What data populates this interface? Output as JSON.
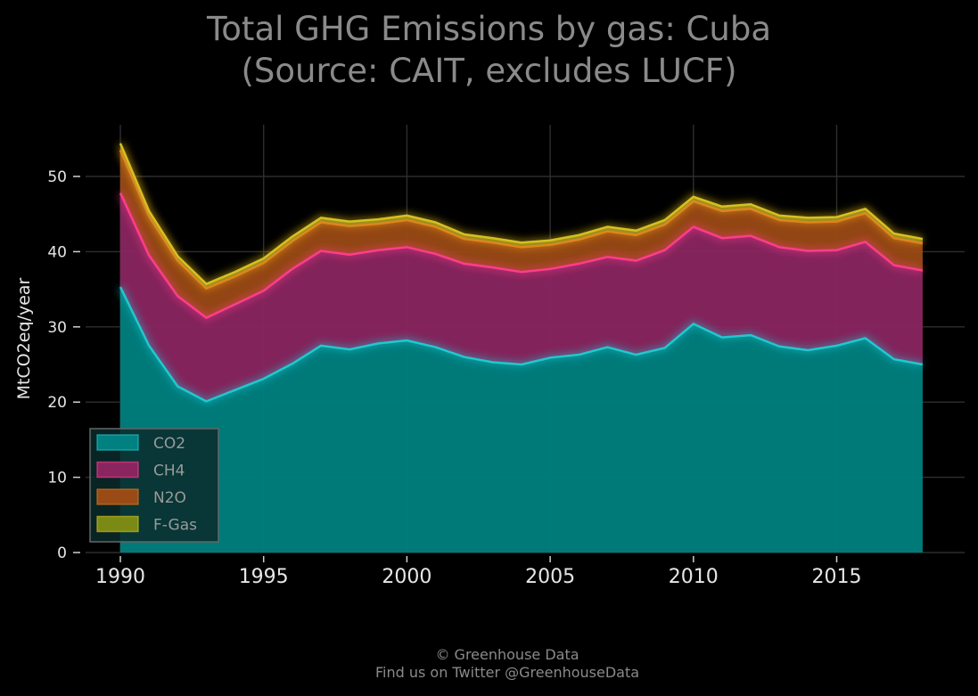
{
  "title_line1": "Total GHG Emissions by gas: Cuba",
  "title_line2": "(Source: CAIT, excludes LUCF)",
  "footer_line1": "© Greenhouse Data",
  "footer_line2": "Find us on Twitter @GreenhouseData",
  "colors": {
    "background": "#000000",
    "CO2": "#008080",
    "CH4": "#8a2560",
    "N2O": "#9a4a14",
    "F-Gas": "#7a8a14",
    "CO2_line": "#1fc8d0",
    "CH4_line": "#ff3d8c",
    "N2O_line": "#e07a20",
    "F-Gas_line": "#d6c020"
  },
  "chart_data": {
    "type": "area",
    "stacked": true,
    "title": "Total GHG Emissions by gas: Cuba (Source: CAIT, excludes LUCF)",
    "xlabel": "",
    "ylabel": "MtCO2eq/year",
    "xlim": [
      1990,
      2018
    ],
    "ylim": [
      0,
      55
    ],
    "x_ticks": [
      1990,
      1995,
      2000,
      2005,
      2010,
      2015
    ],
    "y_ticks": [
      0,
      10,
      20,
      30,
      40,
      50
    ],
    "grid": true,
    "legend_position": "bottom-left",
    "x": [
      1990,
      1991,
      1992,
      1993,
      1994,
      1995,
      1996,
      1997,
      1998,
      1999,
      2000,
      2001,
      2002,
      2003,
      2004,
      2005,
      2006,
      2007,
      2008,
      2009,
      2010,
      2011,
      2012,
      2013,
      2014,
      2015,
      2016,
      2017,
      2018
    ],
    "series": [
      {
        "name": "CO2",
        "values": [
          35.3,
          27.5,
          22.1,
          20.1,
          21.6,
          23.1,
          25.1,
          27.5,
          27.0,
          27.8,
          28.2,
          27.3,
          26.0,
          25.3,
          25.0,
          25.9,
          26.3,
          27.3,
          26.3,
          27.2,
          30.4,
          28.6,
          28.9,
          27.4,
          26.9,
          27.5,
          28.5,
          25.7,
          25.0
        ]
      },
      {
        "name": "CH4",
        "values": [
          12.5,
          12.0,
          12.0,
          11.1,
          11.4,
          11.7,
          12.6,
          12.6,
          12.6,
          12.4,
          12.4,
          12.4,
          12.4,
          12.6,
          12.3,
          11.8,
          12.1,
          12.0,
          12.5,
          13.0,
          12.9,
          13.2,
          13.2,
          13.2,
          13.2,
          12.7,
          12.8,
          12.5,
          12.5
        ]
      },
      {
        "name": "N2O",
        "values": [
          5.7,
          5.2,
          4.7,
          3.9,
          3.7,
          3.7,
          3.7,
          3.8,
          3.8,
          3.5,
          3.6,
          3.6,
          3.3,
          3.3,
          3.3,
          3.2,
          3.2,
          3.4,
          3.4,
          3.4,
          3.4,
          3.6,
          3.6,
          3.6,
          3.8,
          3.8,
          3.8,
          3.6,
          3.6
        ]
      },
      {
        "name": "F-Gas",
        "values": [
          0.9,
          0.7,
          0.6,
          0.6,
          0.6,
          0.6,
          0.6,
          0.6,
          0.6,
          0.6,
          0.6,
          0.6,
          0.6,
          0.6,
          0.6,
          0.6,
          0.6,
          0.6,
          0.6,
          0.6,
          0.6,
          0.6,
          0.6,
          0.6,
          0.6,
          0.6,
          0.6,
          0.6,
          0.6
        ]
      }
    ]
  }
}
